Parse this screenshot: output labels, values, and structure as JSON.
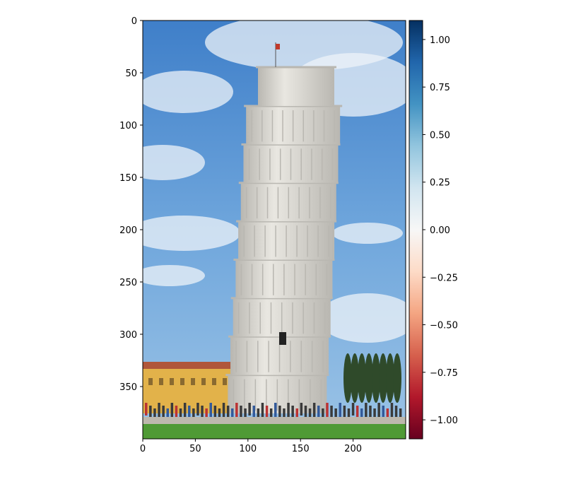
{
  "chart_data": {
    "type": "heatmap",
    "image_content": "photo of the Leaning Tower of Pisa under a blue sky with clouds",
    "image_shape": {
      "width": 250,
      "height": 400
    },
    "x_axis": {
      "ticks": [
        0,
        50,
        100,
        150,
        200
      ],
      "tick_labels": [
        "0",
        "50",
        "100",
        "150",
        "200"
      ],
      "range": [
        0,
        250
      ]
    },
    "y_axis": {
      "ticks": [
        0,
        50,
        100,
        150,
        200,
        250,
        300,
        350
      ],
      "tick_labels": [
        "0",
        "50",
        "100",
        "150",
        "200",
        "250",
        "300",
        "350"
      ],
      "range": [
        400,
        0
      ],
      "inverted": true
    },
    "colorbar": {
      "colormap": "RdBu",
      "range": [
        -1.1,
        1.1
      ],
      "ticks": [
        1.0,
        0.75,
        0.5,
        0.25,
        0.0,
        -0.25,
        -0.5,
        -0.75,
        -1.0
      ],
      "tick_labels": [
        "1.00",
        "0.75",
        "0.50",
        "0.25",
        "0.00",
        "−0.25",
        "−0.50",
        "−0.75",
        "−1.00"
      ],
      "stops": [
        "#67001f",
        "#b2182b",
        "#d6604d",
        "#f4a582",
        "#fddbc7",
        "#f7f7f7",
        "#d1e5f0",
        "#92c5de",
        "#4393c3",
        "#2166ac",
        "#053061"
      ]
    },
    "title": "",
    "xlabel": "",
    "ylabel": ""
  },
  "colors": {
    "sky_top": "#3f7fc9",
    "sky_mid": "#6fa6dc",
    "sky_low": "#9cc4e6",
    "cloud": "#eef3f8",
    "tower": "#e9e7e1",
    "tower_shadow": "#b9b7b1",
    "building": "#e2b24a",
    "roof": "#b0563a",
    "grass": "#4f9a35",
    "trees": "#2f4a2a",
    "crowd": "#3a3a3a"
  }
}
